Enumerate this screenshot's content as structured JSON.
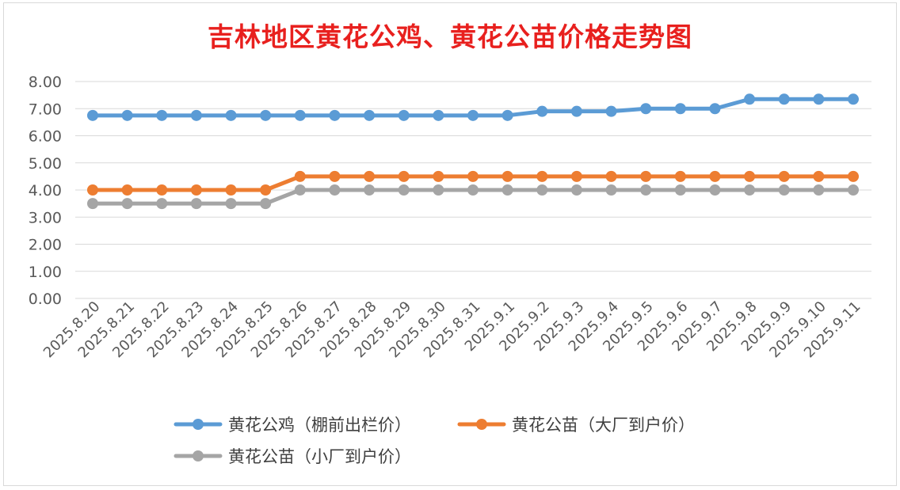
{
  "chart_data": {
    "type": "line",
    "title": "吉林地区黄花公鸡、黄花公苗价格走势图",
    "xlabel": "",
    "ylabel": "",
    "ylim": [
      0,
      8
    ],
    "yticks": [
      "0.00",
      "1.00",
      "2.00",
      "3.00",
      "4.00",
      "5.00",
      "6.00",
      "7.00",
      "8.00"
    ],
    "categories": [
      "2025.8.20",
      "2025.8.21",
      "2025.8.22",
      "2025.8.23",
      "2025.8.24",
      "2025.8.25",
      "2025.8.26",
      "2025.8.27",
      "2025.8.28",
      "2025.8.29",
      "2025.8.30",
      "2025.8.31",
      "2025.9.1",
      "2025.9.2",
      "2025.9.3",
      "2025.9.4",
      "2025.9.5",
      "2025.9.6",
      "2025.9.7",
      "2025.9.8",
      "2025.9.9",
      "2025.9.10",
      "2025.9.11"
    ],
    "series": [
      {
        "name": "黄花公鸡（棚前出栏价）",
        "color": "#5b9bd5",
        "values": [
          6.75,
          6.75,
          6.75,
          6.75,
          6.75,
          6.75,
          6.75,
          6.75,
          6.75,
          6.75,
          6.75,
          6.75,
          6.75,
          6.9,
          6.9,
          6.9,
          7.0,
          7.0,
          7.0,
          7.35,
          7.35,
          7.35,
          7.35
        ]
      },
      {
        "name": "黄花公苗（大厂到户价）",
        "color": "#ed7d31",
        "values": [
          4.0,
          4.0,
          4.0,
          4.0,
          4.0,
          4.0,
          4.5,
          4.5,
          4.5,
          4.5,
          4.5,
          4.5,
          4.5,
          4.5,
          4.5,
          4.5,
          4.5,
          4.5,
          4.5,
          4.5,
          4.5,
          4.5,
          4.5
        ]
      },
      {
        "name": "黄花公苗（小厂到户价）",
        "color": "#a5a5a5",
        "values": [
          3.5,
          3.5,
          3.5,
          3.5,
          3.5,
          3.5,
          4.0,
          4.0,
          4.0,
          4.0,
          4.0,
          4.0,
          4.0,
          4.0,
          4.0,
          4.0,
          4.0,
          4.0,
          4.0,
          4.0,
          4.0,
          4.0,
          4.0
        ]
      }
    ],
    "grid": true,
    "legend": "bottom"
  }
}
